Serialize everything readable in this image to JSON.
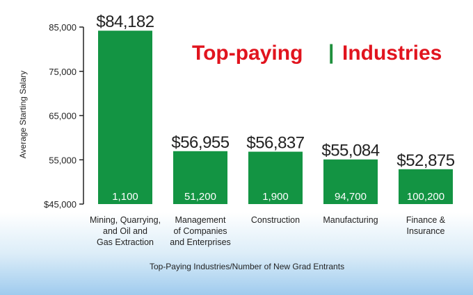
{
  "chart_data": {
    "type": "bar",
    "title_part1": "Top-paying",
    "title_separator": "|",
    "title_part2": "Industries",
    "xlabel": "Top-Paying Industries/Number of New Grad Entrants",
    "ylabel": "Average Starting Salary",
    "ylim": [
      45000,
      85000
    ],
    "yticks": [
      {
        "value": 45000,
        "label": "$45,000"
      },
      {
        "value": 55000,
        "label": "55,000"
      },
      {
        "value": 65000,
        "label": "65,000"
      },
      {
        "value": 75000,
        "label": "75,000"
      },
      {
        "value": 85000,
        "label": "85,000"
      }
    ],
    "categories": [
      [
        "Mining, Quarrying,",
        "and Oil and",
        "Gas Extraction"
      ],
      [
        "Management",
        "of Companies",
        "and Enterprises"
      ],
      [
        "Construction"
      ],
      [
        "Manufacturing"
      ],
      [
        "Finance &",
        "Insurance"
      ]
    ],
    "values": [
      84182,
      56955,
      56837,
      55084,
      52875
    ],
    "value_labels": [
      "$84,182",
      "$56,955",
      "$56,837",
      "$55,084",
      "$52,875"
    ],
    "entrants": [
      "1,100",
      "51,200",
      "1,900",
      "94,700",
      "100,200"
    ],
    "bar_color": "#139443",
    "grid": false,
    "legend": "none"
  }
}
